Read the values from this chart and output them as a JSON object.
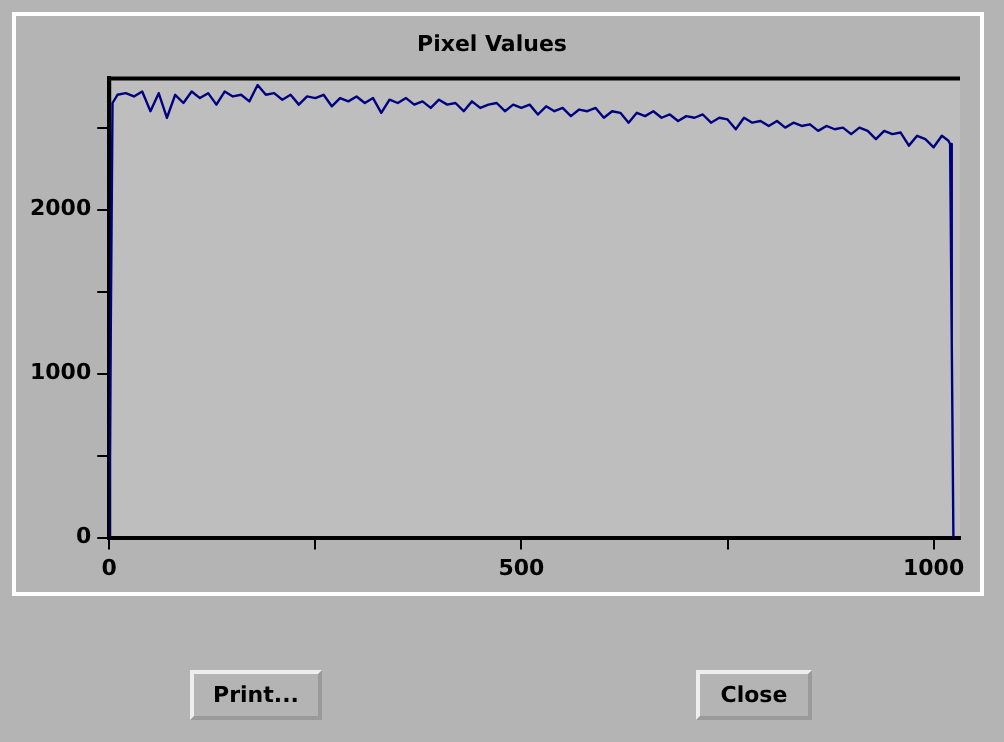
{
  "chart_data": {
    "type": "line",
    "title": "Pixel Values",
    "x": [
      0,
      2,
      4,
      10,
      20,
      30,
      40,
      50,
      60,
      70,
      80,
      90,
      100,
      110,
      120,
      130,
      140,
      150,
      160,
      170,
      180,
      190,
      200,
      210,
      220,
      230,
      240,
      250,
      260,
      270,
      280,
      290,
      300,
      310,
      320,
      330,
      340,
      350,
      360,
      370,
      380,
      390,
      400,
      410,
      420,
      430,
      440,
      450,
      460,
      470,
      480,
      490,
      500,
      510,
      520,
      530,
      540,
      550,
      560,
      570,
      580,
      590,
      600,
      610,
      620,
      630,
      640,
      650,
      660,
      670,
      680,
      690,
      700,
      710,
      720,
      730,
      740,
      750,
      760,
      770,
      780,
      790,
      800,
      810,
      820,
      830,
      840,
      850,
      860,
      870,
      880,
      890,
      900,
      910,
      920,
      930,
      940,
      950,
      960,
      970,
      980,
      990,
      1000,
      1010,
      1018,
      1020,
      1022,
      1024
    ],
    "series": [
      {
        "color": "#000080",
        "values": [
          0,
          1350,
          2650,
          2700,
          2710,
          2690,
          2720,
          2600,
          2710,
          2560,
          2700,
          2650,
          2720,
          2680,
          2710,
          2640,
          2720,
          2690,
          2700,
          2660,
          2760,
          2700,
          2710,
          2670,
          2700,
          2640,
          2690,
          2680,
          2700,
          2630,
          2680,
          2660,
          2690,
          2650,
          2680,
          2590,
          2670,
          2650,
          2680,
          2640,
          2660,
          2620,
          2670,
          2640,
          2650,
          2600,
          2660,
          2620,
          2640,
          2650,
          2600,
          2640,
          2620,
          2640,
          2580,
          2630,
          2600,
          2620,
          2570,
          2610,
          2600,
          2620,
          2560,
          2600,
          2590,
          2530,
          2590,
          2570,
          2600,
          2560,
          2580,
          2540,
          2570,
          2560,
          2580,
          2530,
          2560,
          2550,
          2490,
          2560,
          2530,
          2540,
          2510,
          2540,
          2500,
          2530,
          2510,
          2520,
          2480,
          2510,
          2490,
          2500,
          2460,
          2500,
          2480,
          2430,
          2480,
          2460,
          2470,
          2390,
          2450,
          2430,
          2380,
          2450,
          2420,
          2400,
          1200,
          0
        ]
      }
    ],
    "xlim": [
      0,
      1032
    ],
    "xticks": [
      0,
      {
        "value": 250,
        "label": null
      },
      500,
      {
        "value": 750,
        "label": null
      },
      1000
    ],
    "ylim": [
      0,
      2800
    ],
    "yticks": [
      0,
      {
        "value": 500,
        "label": null
      },
      1000,
      {
        "value": 1500,
        "label": null
      },
      2000,
      {
        "value": 2500,
        "label": null
      }
    ],
    "grid": false,
    "legend": false,
    "marker": "none",
    "line_style": "solid",
    "annotations": [
      "Print...",
      "Close"
    ]
  }
}
